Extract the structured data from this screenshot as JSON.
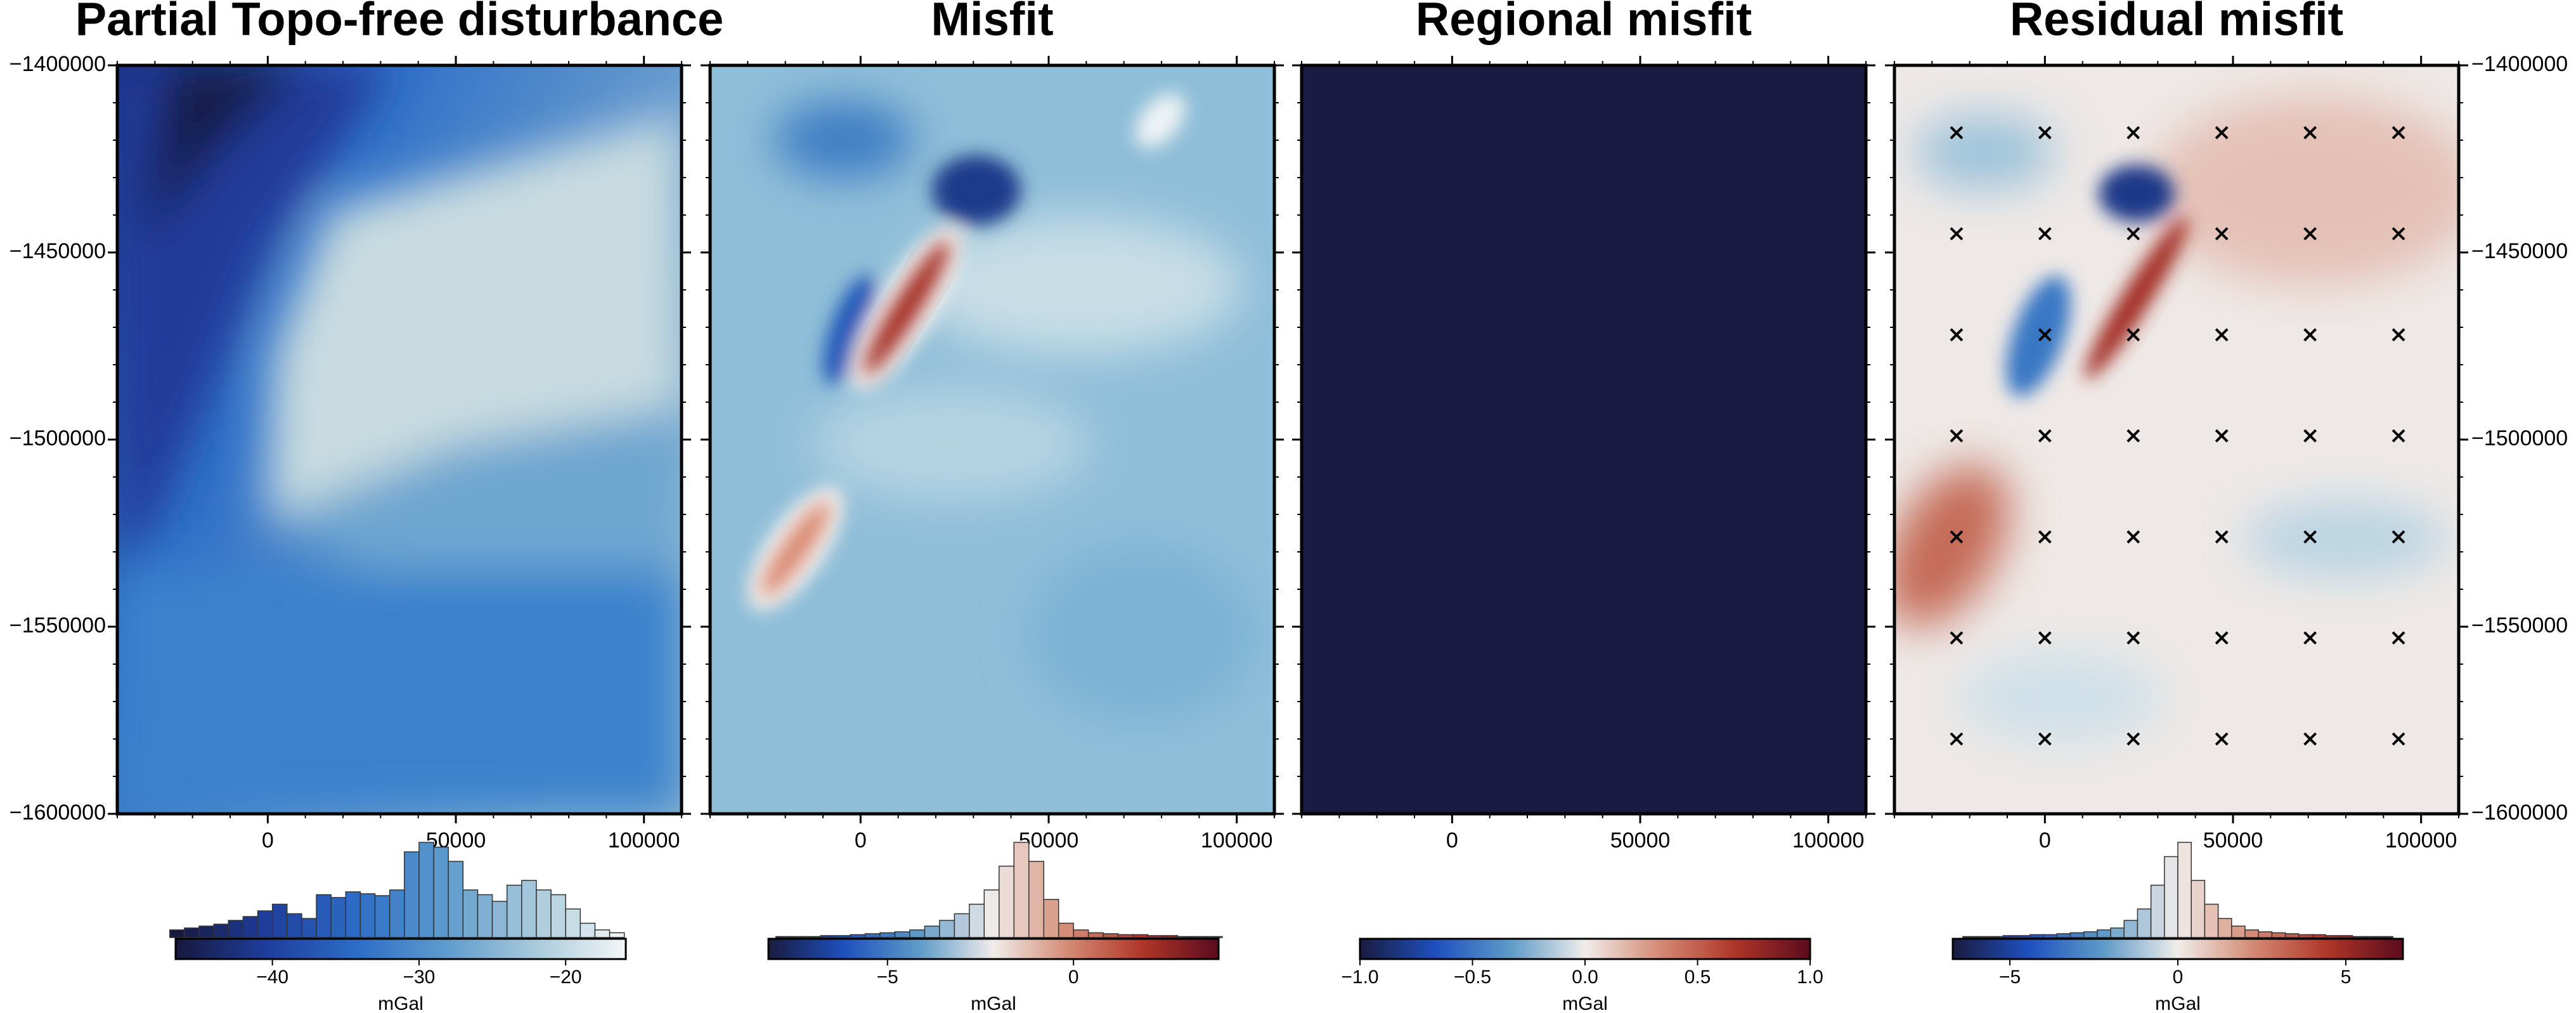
{
  "chart_data": [
    {
      "type": "heatmap",
      "title": "Partial Topo-free disturbance",
      "cmap": "ice",
      "xlim": [
        -40000,
        110000
      ],
      "ylim": [
        -1600000,
        -1400000
      ],
      "xticks": [
        0,
        50000,
        100000
      ],
      "xminor": 10000,
      "yminor": 10000,
      "yticks": [
        {
          "value": -1600000,
          "label": "−1600000"
        },
        {
          "value": -1550000,
          "label": "−1550000"
        },
        {
          "value": -1500000,
          "label": "−1500000"
        },
        {
          "value": -1450000,
          "label": "−1450000"
        },
        {
          "value": -1400000,
          "label": "−1400000"
        }
      ],
      "ytick_side": "left",
      "colorbar": {
        "label": "mGal",
        "clim": [
          -46.6,
          -15.9
        ],
        "ticks": [
          {
            "value": -40,
            "label": "−40"
          },
          {
            "value": -30,
            "label": "−30"
          },
          {
            "value": -20,
            "label": "−20"
          }
        ]
      },
      "histogram": {
        "bins": [
          -47,
          -46,
          -45,
          -44,
          -43,
          -42,
          -41,
          -40,
          -39,
          -38,
          -37,
          -36,
          -35,
          -34,
          -33,
          -32,
          -31,
          -30,
          -29,
          -28,
          -27,
          -26,
          -25,
          -24,
          -23,
          -22,
          -21,
          -20,
          -19,
          -18,
          -17,
          -16
        ],
        "counts": [
          8,
          10,
          12,
          14,
          18,
          22,
          28,
          35,
          25,
          20,
          45,
          42,
          48,
          46,
          44,
          50,
          90,
          100,
          95,
          80,
          50,
          45,
          38,
          55,
          60,
          50,
          45,
          30,
          15,
          8,
          5
        ]
      }
    },
    {
      "type": "heatmap",
      "title": "Misfit",
      "cmap": "balance",
      "xlim": [
        -40000,
        110000
      ],
      "ylim": [
        -1600000,
        -1400000
      ],
      "xticks": [
        0,
        50000,
        100000
      ],
      "xminor": 10000,
      "yminor": 10000,
      "yticks": [
        -1600000,
        -1550000,
        -1500000,
        -1450000,
        -1400000
      ],
      "ytick_side": "none",
      "colorbar": {
        "label": "mGal",
        "clim": [
          -8.2,
          3.9
        ],
        "ticks": [
          {
            "value": -5,
            "label": "−5"
          },
          0
        ]
      },
      "histogram": {
        "bins": [
          -8.0,
          -7.6,
          -7.2,
          -6.8,
          -6.4,
          -6.0,
          -5.6,
          -5.2,
          -4.8,
          -4.4,
          -4.0,
          -3.6,
          -3.2,
          -2.8,
          -2.4,
          -2.0,
          -1.6,
          -1.2,
          -0.8,
          -0.4,
          0.0,
          0.4,
          0.8,
          1.2,
          1.6,
          2.0,
          2.4,
          2.8,
          3.2,
          3.6,
          4.0
        ],
        "counts": [
          1,
          1,
          1,
          2,
          2,
          3,
          4,
          5,
          6,
          8,
          12,
          18,
          25,
          35,
          50,
          75,
          100,
          80,
          40,
          15,
          8,
          5,
          4,
          3,
          3,
          2,
          2,
          1,
          1,
          1
        ]
      }
    },
    {
      "type": "heatmap",
      "title": "Regional misfit",
      "cmap": "balance",
      "xlim": [
        -40000,
        110000
      ],
      "ylim": [
        -1600000,
        -1400000
      ],
      "xticks": [
        0,
        50000,
        100000
      ],
      "xminor": 10000,
      "yminor": 10000,
      "yticks": [
        -1600000,
        -1550000,
        -1500000,
        -1450000,
        -1400000
      ],
      "ytick_side": "none",
      "colorbar": {
        "label": "mGal",
        "clim": [
          -1,
          1
        ],
        "ticks": [
          {
            "value": -1,
            "label": "−1.0"
          },
          {
            "value": -0.5,
            "label": "−0.5"
          },
          {
            "value": 0,
            "label": "0.0"
          },
          {
            "value": 0.5,
            "label": "0.5"
          },
          {
            "value": 1,
            "label": "1.0"
          }
        ]
      }
    },
    {
      "type": "heatmap",
      "title": "Residual misfit",
      "cmap": "balance",
      "xlim": [
        -40000,
        110000
      ],
      "ylim": [
        -1600000,
        -1400000
      ],
      "xticks": [
        0,
        50000,
        100000
      ],
      "xminor": 10000,
      "yminor": 10000,
      "yticks": [
        {
          "value": -1600000,
          "label": "−1600000"
        },
        {
          "value": -1550000,
          "label": "−1550000"
        },
        {
          "value": -1500000,
          "label": "−1500000"
        },
        {
          "value": -1450000,
          "label": "−1450000"
        },
        {
          "value": -1400000,
          "label": "−1400000"
        }
      ],
      "ytick_side": "right",
      "markers": {
        "x": [
          -23500,
          0,
          23500,
          47000,
          70500,
          94000
        ],
        "y": [
          -1418000,
          -1445000,
          -1472000,
          -1499000,
          -1526000,
          -1553000,
          -1580000
        ]
      },
      "colorbar": {
        "label": "mGal",
        "clim": [
          -6.7,
          6.7
        ],
        "ticks": [
          {
            "value": -5,
            "label": "−5"
          },
          0,
          5
        ]
      },
      "histogram": {
        "bins": [
          -6.4,
          -6.0,
          -5.6,
          -5.2,
          -4.8,
          -4.4,
          -4.0,
          -3.6,
          -3.2,
          -2.8,
          -2.4,
          -2.0,
          -1.6,
          -1.2,
          -0.8,
          -0.4,
          0.0,
          0.4,
          0.8,
          1.2,
          1.6,
          2.0,
          2.4,
          2.8,
          3.2,
          3.6,
          4.0,
          4.4,
          4.8,
          5.2,
          5.6,
          6.0,
          6.4
        ],
        "counts": [
          1,
          1,
          1,
          2,
          2,
          3,
          3,
          4,
          5,
          6,
          8,
          10,
          18,
          30,
          55,
          85,
          100,
          60,
          35,
          20,
          12,
          8,
          6,
          5,
          4,
          3,
          3,
          2,
          2,
          1,
          1,
          1
        ]
      }
    }
  ]
}
